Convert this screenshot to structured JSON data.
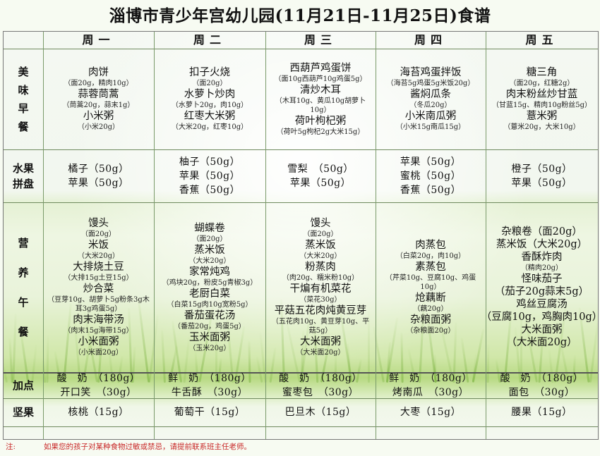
{
  "title": "淄博市青少年宫幼儿园(11月21日-11月25日)食谱",
  "days": [
    "周一",
    "周二",
    "周三",
    "周四",
    "周五"
  ],
  "row_labels": {
    "breakfast": "美味早餐",
    "fruit": "水果拼盘",
    "snack": "营养午餐",
    "extra": "加点",
    "nut": "坚果"
  },
  "breakfast": [
    [
      {
        "dish": "肉饼",
        "note": "（面20g，精肉10g）"
      },
      {
        "dish": "蒜蓉茼蒿",
        "note": "（茼蒿20g，蒜末1g）"
      },
      {
        "dish": "小米粥",
        "note": "（小米20g）"
      }
    ],
    [
      {
        "dish": "扣子火烧",
        "note": "（面20g）"
      },
      {
        "dish": "水萝卜炒肉",
        "note": "（水萝卜20g，肉10g）"
      },
      {
        "dish": "红枣大米粥",
        "note": "（大米20g，红枣10g）"
      }
    ],
    [
      {
        "dish": "西葫芦鸡蛋饼",
        "note": "（面10g西葫芦10g鸡蛋5g）"
      },
      {
        "dish": "清炒木耳",
        "note": "（木耳10g、黄瓜10g胡萝卜10g）"
      },
      {
        "dish": "荷叶枸杞粥",
        "note": "（荷叶5g枸杞2g大米15g）"
      }
    ],
    [
      {
        "dish": "海苔鸡蛋拌饭",
        "note": "（海苔5g鸡蛋5g米饭20g）"
      },
      {
        "dish": "酱焖瓜条",
        "note": "（冬瓜20g）"
      },
      {
        "dish": "小米南瓜粥",
        "note": "（小米15g南瓜15g）"
      }
    ],
    [
      {
        "dish": "糖三角",
        "note": "（面20g，红糖2g）"
      },
      {
        "dish": "肉末粉丝炒甘蓝",
        "note": "（甘蓝15g、精肉10g粉丝5g）"
      },
      {
        "dish": "薏米粥",
        "note": "（薏米20g，大米10g）"
      }
    ]
  ],
  "fruit": [
    [
      "橘子（50g）",
      "苹果（50g）"
    ],
    [
      "柚子（50g）",
      "苹果（50g）",
      "香蕉（50g）"
    ],
    [
      "雪梨　（50g）",
      "苹果（50g）"
    ],
    [
      "苹果（50g）",
      "蜜桃（50g）",
      "香蕉（50g）"
    ],
    [
      "橙子（50g）",
      "苹果（50g）"
    ]
  ],
  "snack": [
    [
      {
        "dish": "馒头",
        "note": "（面20g）"
      },
      {
        "dish": "米饭",
        "note": "（大米20g）"
      },
      {
        "dish": "大排烧土豆",
        "note": ""
      },
      {
        "dish": "",
        "note": "（大排15g土豆15g）"
      },
      {
        "dish": "炒合菜",
        "note": ""
      },
      {
        "dish": "",
        "note": "（豆芽10g、胡萝卜5g粉条3g木耳3g鸡蛋5g）"
      },
      {
        "dish": "肉末海带汤",
        "note": ""
      },
      {
        "dish": "",
        "note": "（肉末15g海带15g）"
      },
      {
        "dish": "小米面粥",
        "note": ""
      },
      {
        "dish": "",
        "note": "（小米面20g）"
      }
    ],
    [
      {
        "dish": "蝴蝶卷",
        "note": "（面20g）"
      },
      {
        "dish": "蒸米饭",
        "note": "（大米20g）"
      },
      {
        "dish": "家常炖鸡",
        "note": ""
      },
      {
        "dish": "",
        "note": "（鸡块20g，粉皮5g青椒3g）"
      },
      {
        "dish": "老厨白菜",
        "note": ""
      },
      {
        "dish": "",
        "note": "（白菜15g肉10g宽粉5g）"
      },
      {
        "dish": "番茄蛋花汤",
        "note": ""
      },
      {
        "dish": "",
        "note": "（番茄20g，鸡蛋5g）"
      },
      {
        "dish": "玉米面粥",
        "note": ""
      },
      {
        "dish": "",
        "note": "（玉米20g）"
      }
    ],
    [
      {
        "dish": "馒头",
        "note": "（面20g）"
      },
      {
        "dish": "蒸米饭",
        "note": "（大米20g）"
      },
      {
        "dish": "粉蒸肉",
        "note": ""
      },
      {
        "dish": "",
        "note": "（肉20g、糯米粉10g）"
      },
      {
        "dish": "干煸有机菜花",
        "note": ""
      },
      {
        "dish": "",
        "note": "（菜花30g）"
      },
      {
        "dish": "平菇五花肉炖黄豆芽",
        "note": ""
      },
      {
        "dish": "",
        "note": "（五花肉10g、黄豆芽10g、平菇5g）"
      },
      {
        "dish": "大米面粥",
        "note": ""
      },
      {
        "dish": "",
        "note": "（大米面20g）"
      }
    ],
    [
      {
        "dish": "肉蒸包",
        "note": ""
      },
      {
        "dish": "",
        "note": "（白菜20g，肉10g）"
      },
      {
        "dish": "素蒸包",
        "note": ""
      },
      {
        "dish": "",
        "note": "（芹菜10g、豆腐10g、鸡蛋10g）"
      },
      {
        "dish": "炝藕断",
        "note": ""
      },
      {
        "dish": "",
        "note": "（藕20g）"
      },
      {
        "dish": "杂粮面粥",
        "note": ""
      },
      {
        "dish": "",
        "note": "（杂粮面20g）"
      }
    ],
    [
      {
        "dish": "杂粮卷（面20g）",
        "note": ""
      },
      {
        "dish": "蒸米饭（大米20g）",
        "note": ""
      },
      {
        "dish": "香酥炸肉",
        "note": ""
      },
      {
        "dish": "",
        "note": "（精肉20g）"
      },
      {
        "dish": "怪味茄子",
        "note": ""
      },
      {
        "dish": "（茄子20g蒜末5g）",
        "note": ""
      },
      {
        "dish": "鸡丝豆腐汤",
        "note": ""
      },
      {
        "dish": "（豆腐10g，鸡胸肉10g）",
        "note": ""
      },
      {
        "dish": "大米面粥",
        "note": ""
      },
      {
        "dish": "（大米面20g）",
        "note": ""
      }
    ]
  ],
  "extra": [
    [
      "酸　奶　（180g）",
      "开口笑　（30g）"
    ],
    [
      "鲜　奶　（180g）",
      "牛舌酥　（30g）"
    ],
    [
      "酸　奶　（180g）",
      "蜜枣包　（30g）"
    ],
    [
      "鲜　奶　（180g）",
      "烤南瓜　（30g）"
    ],
    [
      "酸　奶　（180g）",
      "面包　（30g）"
    ]
  ],
  "nut": [
    "核桃（15g）",
    "葡萄干（15g）",
    "巴旦木（15g）",
    "大枣（15g）",
    "腰果（15g）"
  ],
  "note_label": "注:",
  "note_text": "如果您的孩子对某种食物过敏或禁忌，请提前联系班主任老师。",
  "colors": {
    "note": "#c82828",
    "grid": "#6f8a5e",
    "accent_green": "#b7d982"
  }
}
